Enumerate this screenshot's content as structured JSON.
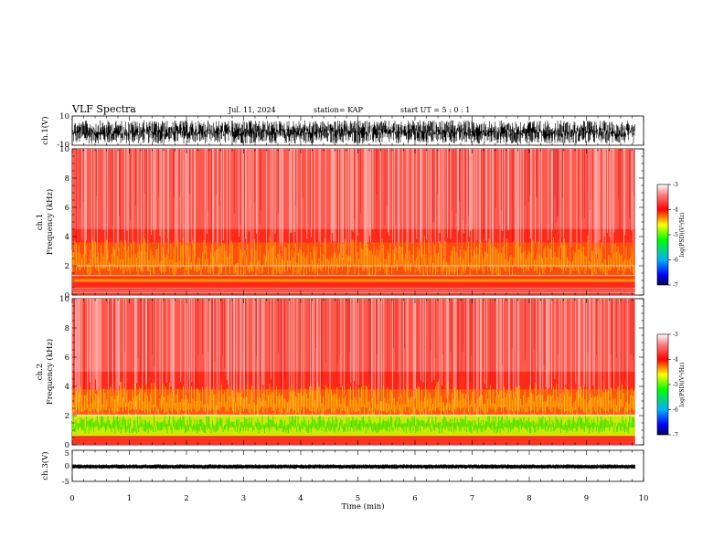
{
  "header": {
    "title": "VLF Spectra",
    "date": "Jul. 11, 2024",
    "station": "station= KAP",
    "start": "start UT =  5 : 0 : 1"
  },
  "colors": {
    "background": "#ffffff",
    "axes": "#000000",
    "waveform": "#000000",
    "colorscale": [
      "#000050",
      "#0000ff",
      "#0090ff",
      "#00d0ff",
      "#00ff00",
      "#c0ff00",
      "#ffff00",
      "#ff8000",
      "#ff0000",
      "#ff8080",
      "#ffffff"
    ]
  },
  "chart_data": [
    {
      "type": "line",
      "name": "ch1-waveform",
      "ylabel": "ch.1(V)",
      "ylim": [
        -10,
        10
      ],
      "yticks": [
        "10",
        "-10"
      ],
      "xlim": [
        0,
        10
      ],
      "signal_extent": [
        -9,
        7
      ],
      "grid": false
    },
    {
      "type": "heatmap",
      "name": "ch1-spectrogram",
      "ylabel": "ch.1\nFrequency (kHz)",
      "ylim": [
        0,
        10
      ],
      "yticks": [
        "0",
        "2",
        "4",
        "6",
        "8",
        "10"
      ],
      "xlim": [
        0,
        10
      ],
      "data_end_min": 9.85,
      "colorbar": {
        "label": "log(PSD)(V²/Hz)",
        "range": [
          -7,
          -3
        ],
        "ticks": [
          "-3",
          "-4",
          "-5",
          "-6",
          "-7"
        ]
      },
      "bands": [
        {
          "f": [
            0.0,
            0.5
          ],
          "level": "white lines"
        },
        {
          "f": [
            1.0,
            3.5
          ],
          "level": "yellow/orange"
        },
        {
          "f": [
            3.5,
            10
          ],
          "level": "red/white"
        }
      ]
    },
    {
      "type": "heatmap",
      "name": "ch2-spectrogram",
      "ylabel": "ch.2\nFrequency (kHz)",
      "ylim": [
        0,
        10
      ],
      "yticks": [
        "0",
        "2",
        "4",
        "6",
        "8",
        "10"
      ],
      "xlim": [
        0,
        10
      ],
      "data_end_min": 9.85,
      "colorbar": {
        "label": "log(PSD)(V²/Hz)",
        "range": [
          -7,
          -3
        ],
        "ticks": [
          "-3",
          "-4",
          "-5",
          "-6",
          "-7"
        ]
      },
      "bands": [
        {
          "f": [
            0.5,
            2.0
          ],
          "level": "green/yellow"
        },
        {
          "f": [
            2.0,
            3.8
          ],
          "level": "yellow/orange"
        },
        {
          "f": [
            3.8,
            10
          ],
          "level": "red/white"
        }
      ]
    },
    {
      "type": "line",
      "name": "ch3-waveform",
      "ylabel": "ch.3(V)",
      "ylim": [
        -5,
        5
      ],
      "yticks": [
        "5",
        "0",
        "-5"
      ],
      "xlim": [
        0,
        10
      ],
      "signal_extent": [
        -1.0,
        0.5
      ],
      "xlabel": "Time (min)",
      "xticks": [
        "0",
        "1",
        "2",
        "3",
        "4",
        "5",
        "6",
        "7",
        "8",
        "9",
        "10"
      ],
      "grid": false
    }
  ]
}
